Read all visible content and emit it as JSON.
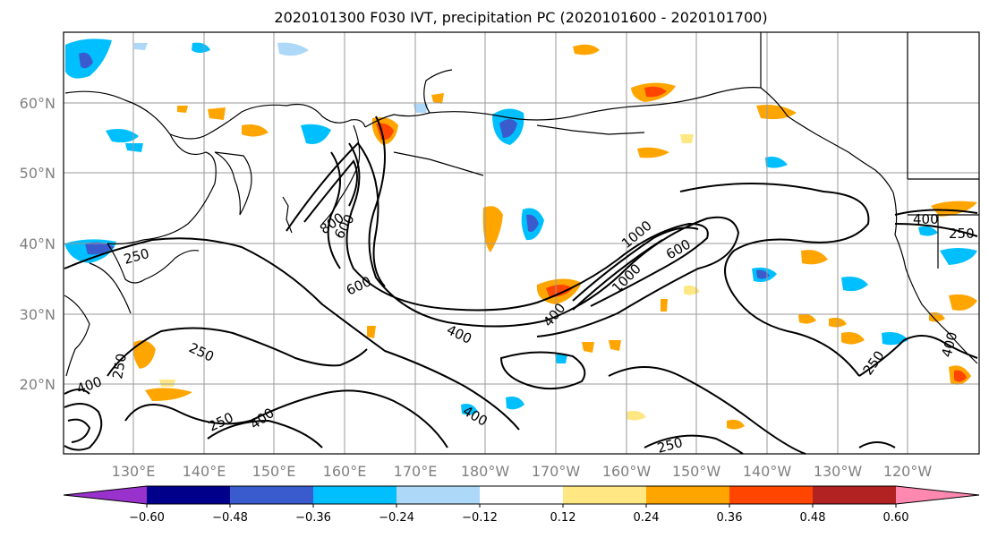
{
  "title": "2020101300 F030 IVT, precipitation PC (2020101600 - 2020101700)",
  "lat_labels": [
    "20°N",
    "30°N",
    "40°N",
    "50°N",
    "60°N"
  ],
  "lon_labels": [
    "130°E",
    "140°E",
    "150°E",
    "160°E",
    "170°E",
    "180°W",
    "170°W",
    "160°W",
    "150°W",
    "140°W",
    "130°W",
    "120°W"
  ],
  "colorbar": {
    "tick_labels": [
      "−0.60",
      "−0.48",
      "−0.36",
      "−0.24",
      "−0.12",
      "0.12",
      "0.24",
      "0.36",
      "0.48",
      "0.60"
    ],
    "colors": [
      "#9932cc",
      "#00008b",
      "#3a5bcd",
      "#00bfff",
      "#add8f8",
      "#ffffff",
      "#ffe784",
      "#ffa500",
      "#ff4500",
      "#b22222",
      "#ff88b0"
    ]
  },
  "ivt_contour_labels": [
    "250",
    "400",
    "600",
    "800",
    "1000",
    "250",
    "400",
    "600",
    "400",
    "250",
    "400",
    "250",
    "600",
    "400",
    "1000",
    "400",
    "250",
    "400",
    "250",
    "250"
  ]
}
